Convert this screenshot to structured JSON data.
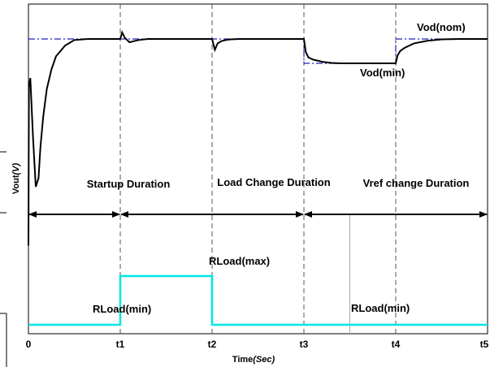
{
  "chart_data": {
    "type": "line",
    "title": "",
    "xlabel": "Time",
    "xlabel_units": "(Sec)",
    "ylabel": "Vout",
    "ylabel_units": "(V)",
    "grid": false,
    "legend": "none",
    "xlim": [
      0,
      5
    ],
    "x_ticks": [
      {
        "value": 0,
        "label": "0"
      },
      {
        "value": 1,
        "label": "t1"
      },
      {
        "value": 2,
        "label": "t2"
      },
      {
        "value": 3,
        "label": "t3"
      },
      {
        "value": 4,
        "label": "t4"
      },
      {
        "value": 5,
        "label": "t5"
      }
    ],
    "event_lines": [
      1,
      2,
      3,
      4
    ],
    "series": [
      {
        "color": "#000000",
        "style": "solid",
        "x": [
          0,
          0.005,
          0.02,
          0.05,
          0.08,
          0.11,
          0.13,
          0.16,
          0.2,
          0.25,
          0.3,
          0.4,
          0.5,
          0.65,
          1.0,
          1.02,
          1.05,
          1.1,
          1.15,
          1.2,
          1.3,
          2.0,
          2.03,
          2.06,
          2.1,
          2.15,
          2.2,
          2.3,
          3.0,
          3.02,
          3.05,
          3.1,
          3.2,
          3.3,
          3.4,
          3.6,
          4.0,
          4.02,
          4.05,
          4.1,
          4.2,
          4.35,
          4.5,
          4.7,
          5.0
        ],
        "y": [
          0.05,
          0.78,
          0.82,
          0.55,
          0.32,
          0.36,
          0.5,
          0.64,
          0.77,
          0.86,
          0.92,
          0.97,
          0.995,
          1.0,
          1.0,
          1.03,
          1.005,
          0.985,
          0.99,
          0.995,
          1.0,
          1.0,
          0.95,
          0.98,
          0.99,
          0.995,
          0.998,
          1.0,
          1.0,
          0.94,
          0.915,
          0.905,
          0.895,
          0.89,
          0.888,
          0.888,
          0.888,
          0.925,
          0.945,
          0.96,
          0.98,
          0.992,
          0.998,
          1.0,
          1.0
        ]
      },
      {
        "color": "#2222bb",
        "style": "dashdot",
        "x": [
          0,
          3.0,
          3.0,
          4.0,
          4.0,
          5.0
        ],
        "y": [
          1.0,
          1.0,
          0.888,
          0.888,
          1.0,
          1.0
        ]
      },
      {
        "color": "#00e5e5",
        "style": "solid",
        "x": [
          0,
          1.0,
          1.0,
          2.0,
          2.0,
          5.0
        ],
        "y": [
          0.0,
          0.0,
          0.185,
          0.185,
          0.0,
          0.0
        ]
      }
    ],
    "phase_arrows": [
      {
        "from": 0,
        "to": 1,
        "label": "Startup Duration"
      },
      {
        "from": 1,
        "to": 3,
        "label": "Load Change Duration"
      },
      {
        "from": 3,
        "to": 5,
        "label": "Vref change Duration"
      }
    ],
    "annotations": {
      "vod_nom": "Vod(nom)",
      "vod_min": "Vod(min)",
      "rload_max": "RLoad(max)",
      "rload_min_left": "RLoad(min)",
      "rload_min_right": "RLoad(min)"
    }
  }
}
